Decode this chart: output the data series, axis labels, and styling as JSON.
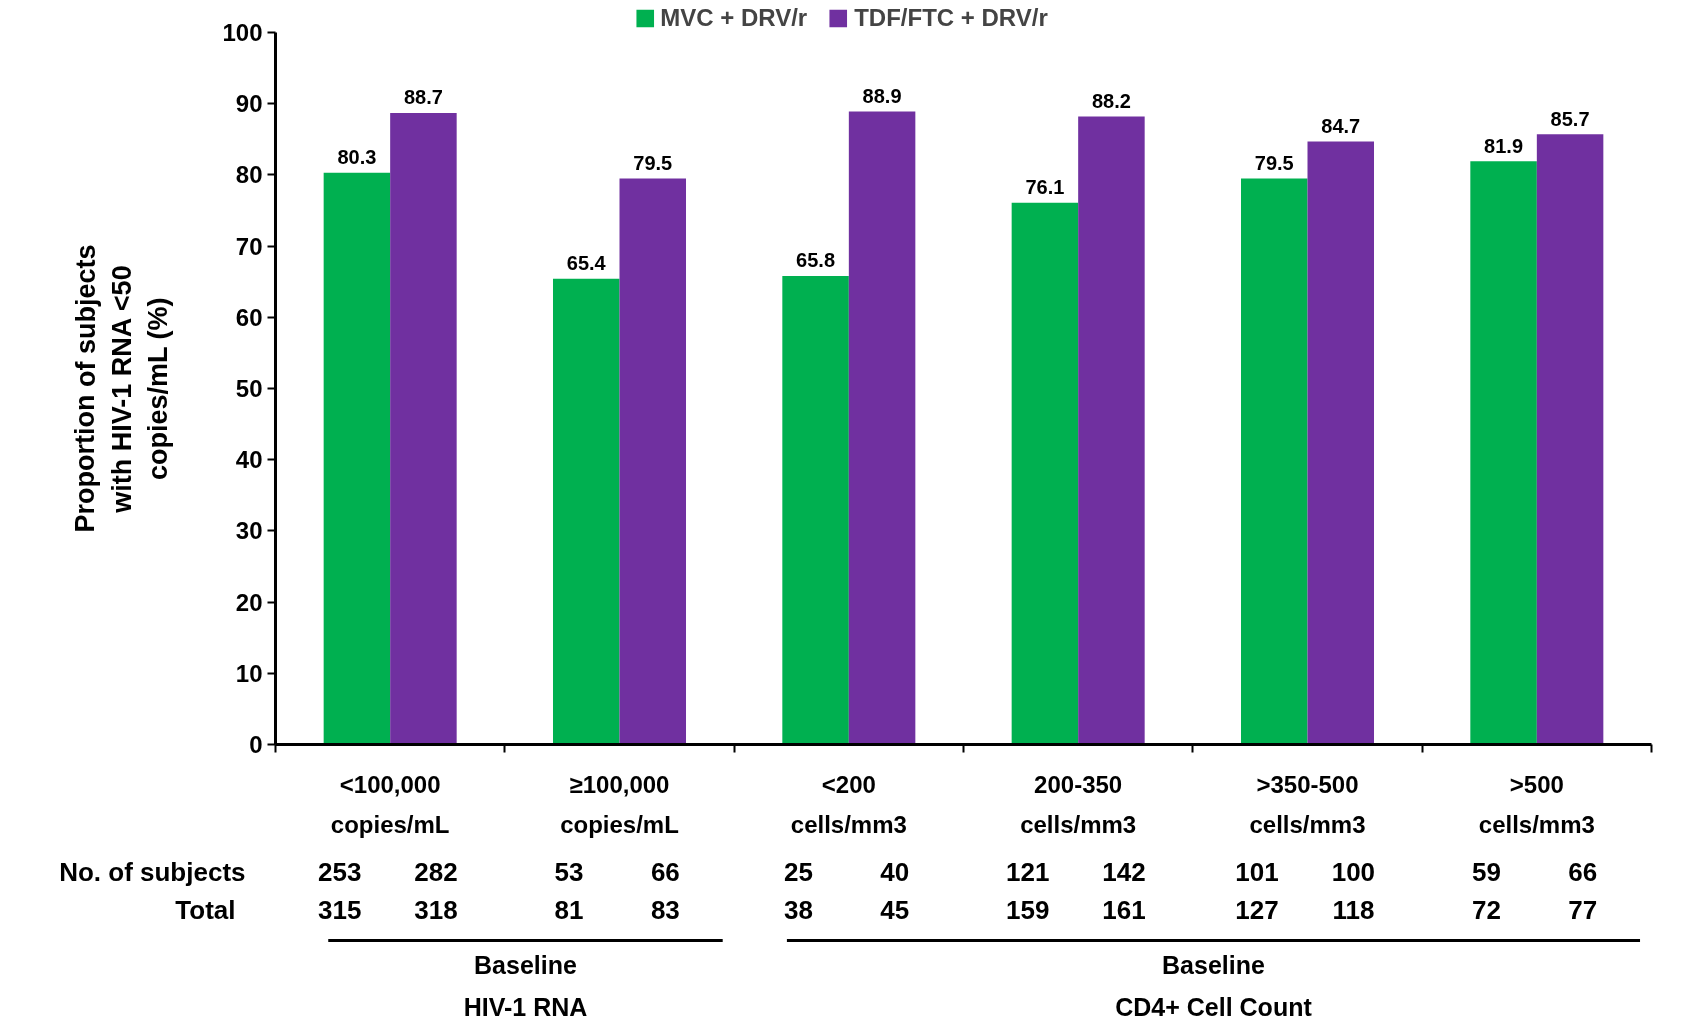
{
  "chart_data": {
    "type": "bar",
    "ylabel": "Proportion of subjects with HIV-1 RNA <50 copies/mL (%)",
    "categories": [
      "<100,000 copies/mL",
      "≥100,000 copies/mL",
      "<200 cells/mm3",
      "200-350 cells/mm3",
      ">350-500 cells/mm3",
      ">500 cells/mm3"
    ],
    "series": [
      {
        "name": "MVC + DRV/r",
        "color": "#00b050",
        "values": [
          80.3,
          65.4,
          65.8,
          76.1,
          79.5,
          81.9
        ]
      },
      {
        "name": "TDF/FTC + DRV/r",
        "color": "#7030a0",
        "values": [
          88.7,
          79.5,
          88.9,
          88.2,
          84.7,
          85.7
        ]
      }
    ],
    "ylim": [
      0,
      100
    ],
    "yticks": [
      0,
      10,
      20,
      30,
      40,
      50,
      60,
      70,
      80,
      90,
      100
    ],
    "grid": false,
    "legend": "top",
    "data_labels": true,
    "annotations": [
      "No. of subjects",
      "Total",
      "253",
      "282",
      "315",
      "318",
      "53",
      "66",
      "81",
      "83",
      "25",
      "40",
      "38",
      "45",
      "121",
      "142",
      "159",
      "161",
      "101",
      "100",
      "127",
      "118",
      "59",
      "66",
      "72",
      "77",
      "Baseline HIV-1 RNA",
      "Baseline CD4+ Cell Count"
    ]
  }
}
